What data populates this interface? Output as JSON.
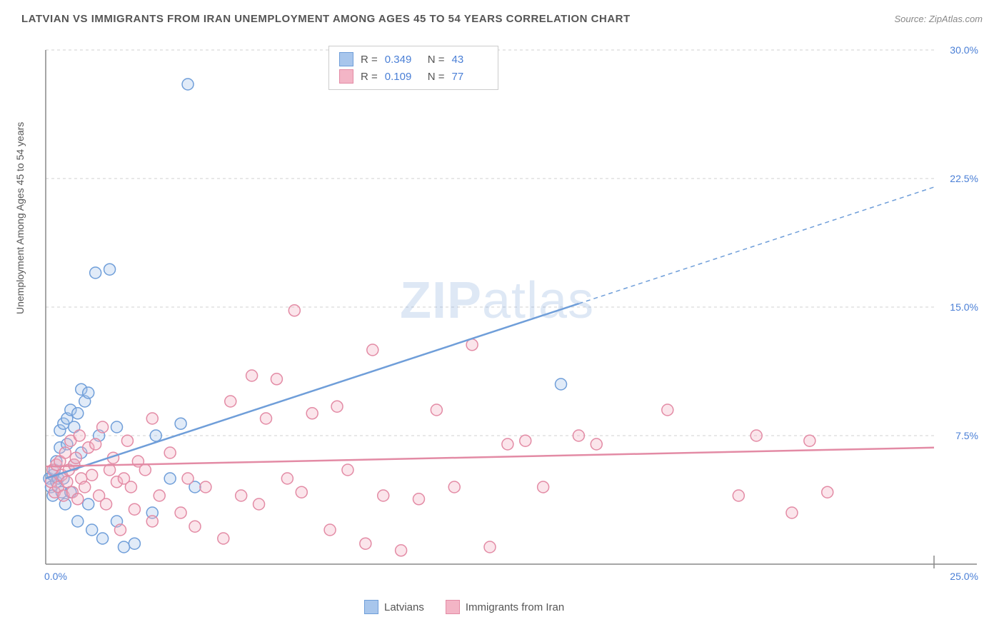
{
  "title": "LATVIAN VS IMMIGRANTS FROM IRAN UNEMPLOYMENT AMONG AGES 45 TO 54 YEARS CORRELATION CHART",
  "source": "Source: ZipAtlas.com",
  "y_axis_label": "Unemployment Among Ages 45 to 54 years",
  "watermark_bold": "ZIP",
  "watermark_rest": "atlas",
  "chart": {
    "type": "scatter",
    "background_color": "#ffffff",
    "grid_color": "#d0d0d0",
    "axis_color": "#888888",
    "xlim": [
      0,
      25
    ],
    "ylim": [
      0,
      30
    ],
    "x_ticks": [
      {
        "v": 0,
        "label": "0.0%"
      },
      {
        "v": 25,
        "label": "25.0%"
      }
    ],
    "y_ticks": [
      {
        "v": 7.5,
        "label": "7.5%"
      },
      {
        "v": 15,
        "label": "15.0%"
      },
      {
        "v": 22.5,
        "label": "22.5%"
      },
      {
        "v": 30,
        "label": "30.0%"
      }
    ],
    "tick_color": "#4a7fd6",
    "tick_fontsize": 14
  },
  "series": [
    {
      "key": "latvians",
      "label": "Latvians",
      "color": "#6f9ed9",
      "fill": "#a8c6ec",
      "R": "0.349",
      "N": "43",
      "trend": {
        "x1": 0,
        "y1": 5.0,
        "x2": 15,
        "y2": 15.2,
        "x_solid_end": 15,
        "x_dash_end": 25,
        "y_dash_end": 22.0
      },
      "points": [
        [
          0.1,
          5.0
        ],
        [
          0.15,
          4.5
        ],
        [
          0.2,
          5.2
        ],
        [
          0.2,
          4.0
        ],
        [
          0.25,
          5.5
        ],
        [
          0.3,
          4.8
        ],
        [
          0.3,
          6.0
        ],
        [
          0.35,
          5.0
        ],
        [
          0.4,
          6.8
        ],
        [
          0.4,
          7.8
        ],
        [
          0.45,
          4.2
        ],
        [
          0.5,
          5.0
        ],
        [
          0.5,
          8.2
        ],
        [
          0.55,
          3.5
        ],
        [
          0.6,
          7.0
        ],
        [
          0.6,
          8.5
        ],
        [
          0.7,
          4.2
        ],
        [
          0.7,
          9.0
        ],
        [
          0.8,
          5.8
        ],
        [
          0.8,
          8.0
        ],
        [
          0.9,
          2.5
        ],
        [
          0.9,
          8.8
        ],
        [
          1.0,
          6.5
        ],
        [
          1.0,
          10.2
        ],
        [
          1.1,
          9.5
        ],
        [
          1.2,
          3.5
        ],
        [
          1.2,
          10.0
        ],
        [
          1.3,
          2.0
        ],
        [
          1.4,
          17.0
        ],
        [
          1.5,
          7.5
        ],
        [
          1.6,
          1.5
        ],
        [
          1.8,
          17.2
        ],
        [
          2.0,
          2.5
        ],
        [
          2.0,
          8.0
        ],
        [
          2.2,
          1.0
        ],
        [
          2.5,
          1.2
        ],
        [
          3.0,
          3.0
        ],
        [
          3.1,
          7.5
        ],
        [
          3.5,
          5.0
        ],
        [
          3.8,
          8.2
        ],
        [
          4.0,
          28.0
        ],
        [
          4.2,
          4.5
        ],
        [
          14.5,
          10.5
        ]
      ]
    },
    {
      "key": "iran",
      "label": "Immigrants from Iran",
      "color": "#e38ba5",
      "fill": "#f3b5c6",
      "R": "0.109",
      "N": "77",
      "trend": {
        "x1": 0,
        "y1": 5.7,
        "x2": 25,
        "y2": 6.8,
        "x_solid_end": 25,
        "x_dash_end": 25,
        "y_dash_end": 6.8
      },
      "points": [
        [
          0.15,
          4.8
        ],
        [
          0.2,
          5.5
        ],
        [
          0.25,
          4.2
        ],
        [
          0.3,
          5.8
        ],
        [
          0.35,
          4.5
        ],
        [
          0.4,
          6.0
        ],
        [
          0.45,
          5.2
        ],
        [
          0.5,
          4.0
        ],
        [
          0.55,
          6.5
        ],
        [
          0.6,
          4.8
        ],
        [
          0.65,
          5.5
        ],
        [
          0.7,
          7.2
        ],
        [
          0.75,
          4.2
        ],
        [
          0.8,
          5.8
        ],
        [
          0.85,
          6.2
        ],
        [
          0.9,
          3.8
        ],
        [
          0.95,
          7.5
        ],
        [
          1.0,
          5.0
        ],
        [
          1.1,
          4.5
        ],
        [
          1.2,
          6.8
        ],
        [
          1.3,
          5.2
        ],
        [
          1.4,
          7.0
        ],
        [
          1.5,
          4.0
        ],
        [
          1.6,
          8.0
        ],
        [
          1.7,
          3.5
        ],
        [
          1.8,
          5.5
        ],
        [
          1.9,
          6.2
        ],
        [
          2.0,
          4.8
        ],
        [
          2.1,
          2.0
        ],
        [
          2.2,
          5.0
        ],
        [
          2.3,
          7.2
        ],
        [
          2.4,
          4.5
        ],
        [
          2.5,
          3.2
        ],
        [
          2.6,
          6.0
        ],
        [
          2.8,
          5.5
        ],
        [
          3.0,
          2.5
        ],
        [
          3.0,
          8.5
        ],
        [
          3.2,
          4.0
        ],
        [
          3.5,
          6.5
        ],
        [
          3.8,
          3.0
        ],
        [
          4.0,
          5.0
        ],
        [
          4.2,
          2.2
        ],
        [
          4.5,
          4.5
        ],
        [
          5.0,
          1.5
        ],
        [
          5.2,
          9.5
        ],
        [
          5.5,
          4.0
        ],
        [
          5.8,
          11.0
        ],
        [
          6.0,
          3.5
        ],
        [
          6.2,
          8.5
        ],
        [
          6.5,
          10.8
        ],
        [
          6.8,
          5.0
        ],
        [
          7.0,
          14.8
        ],
        [
          7.2,
          4.2
        ],
        [
          7.5,
          8.8
        ],
        [
          8.0,
          2.0
        ],
        [
          8.2,
          9.2
        ],
        [
          8.5,
          5.5
        ],
        [
          9.0,
          1.2
        ],
        [
          9.2,
          12.5
        ],
        [
          9.5,
          4.0
        ],
        [
          10.0,
          0.8
        ],
        [
          10.5,
          3.8
        ],
        [
          11.0,
          9.0
        ],
        [
          11.5,
          4.5
        ],
        [
          12.0,
          12.8
        ],
        [
          12.5,
          1.0
        ],
        [
          13.0,
          7.0
        ],
        [
          13.5,
          7.2
        ],
        [
          14.0,
          4.5
        ],
        [
          15.0,
          7.5
        ],
        [
          15.5,
          7.0
        ],
        [
          17.5,
          9.0
        ],
        [
          19.5,
          4.0
        ],
        [
          20.0,
          7.5
        ],
        [
          21.0,
          3.0
        ],
        [
          21.5,
          7.2
        ],
        [
          22.0,
          4.2
        ]
      ]
    }
  ],
  "legend_top": {
    "r_label": "R =",
    "n_label": "N ="
  }
}
